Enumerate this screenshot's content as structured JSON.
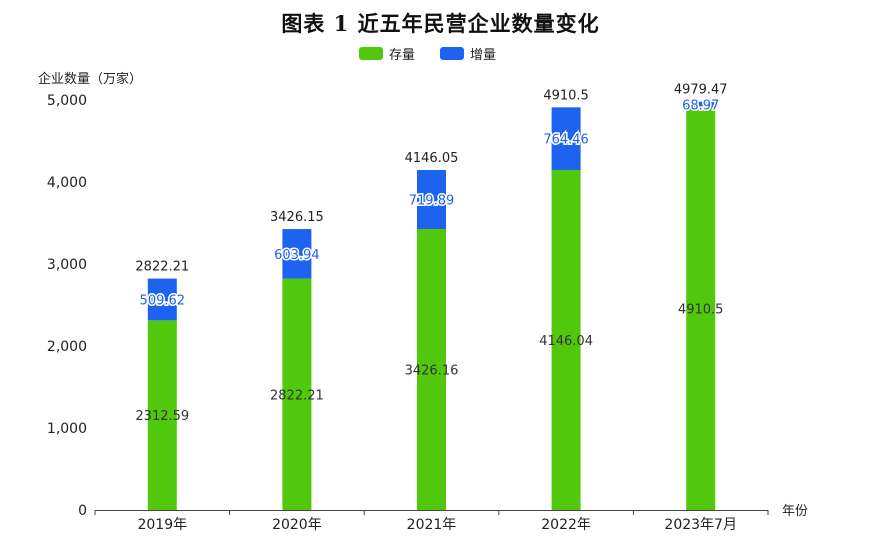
{
  "chart_data": {
    "type": "bar",
    "stacked": true,
    "title": "图表 1 近五年民营企业数量变化",
    "ylabel": "企业数量（万家）",
    "xlabel": "年份",
    "categories": [
      "2019年",
      "2020年",
      "2021年",
      "2022年",
      "2023年7月"
    ],
    "ylim": [
      0,
      5000
    ],
    "yticks": [
      "0",
      "1,000",
      "2,000",
      "3,000",
      "4,000",
      "5,000"
    ],
    "ytick_values": [
      0,
      1000,
      2000,
      3000,
      4000,
      5000
    ],
    "legend_position": "top-center",
    "grid": false,
    "series": [
      {
        "name": "存量",
        "color": "#52c80c",
        "values": [
          2312.59,
          2822.21,
          3426.16,
          4146.04,
          4910.5
        ],
        "labels": [
          "2312.59",
          "2822.21",
          "3426.16",
          "4146.04",
          "4910.5"
        ]
      },
      {
        "name": "增量",
        "color": "#1e62f0",
        "values": [
          509.62,
          603.94,
          719.89,
          764.46,
          68.97
        ],
        "labels": [
          "509.62",
          "603.94",
          "719.89",
          "764.46",
          "68.97"
        ]
      }
    ],
    "totals": [
      "2822.21",
      "3426.15",
      "4146.05",
      "4910.5",
      "4979.47"
    ]
  }
}
